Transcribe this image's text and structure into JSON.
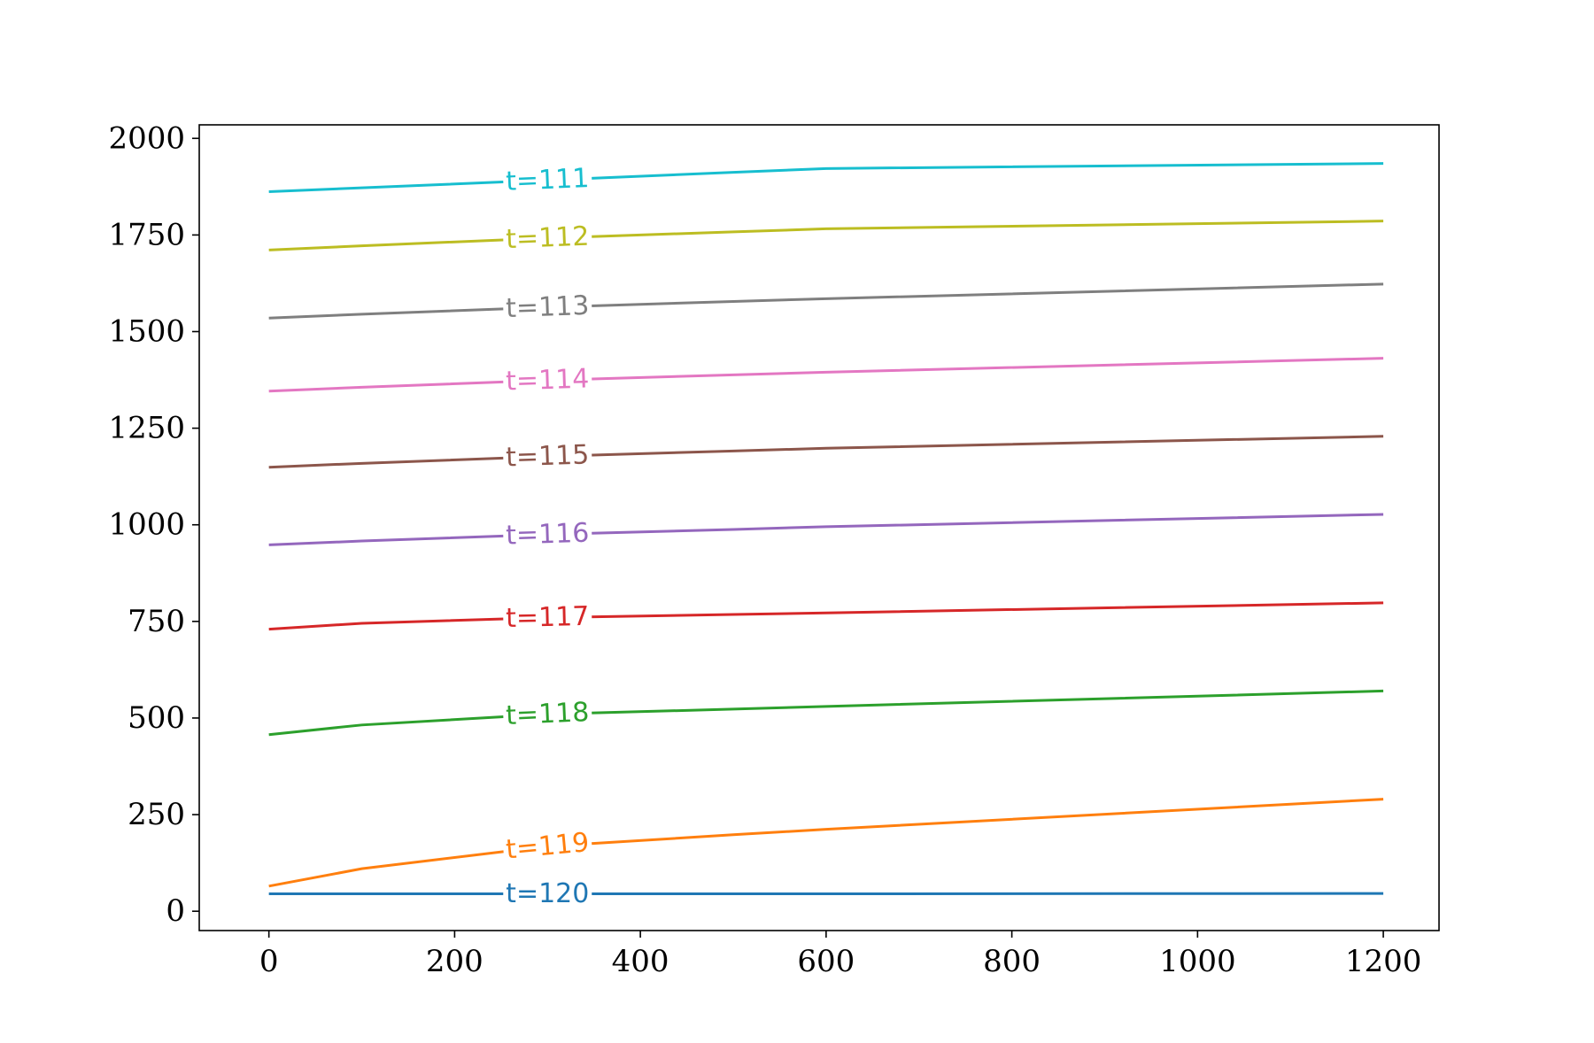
{
  "chart_data": {
    "type": "line",
    "title": "",
    "xlabel": "",
    "ylabel": "",
    "xlim": [
      -75,
      1260
    ],
    "ylim": [
      -50,
      2035
    ],
    "xticks": [
      0,
      200,
      400,
      600,
      800,
      1000,
      1200
    ],
    "yticks": [
      0,
      250,
      500,
      750,
      1000,
      1250,
      1500,
      1750,
      2000
    ],
    "grid": false,
    "legend": "none; inline labels on lines at x≈300",
    "x": [
      0,
      100,
      300,
      500,
      600,
      1200
    ],
    "series": [
      {
        "name": "t=111",
        "color": "#17becf",
        "values": [
          1862,
          1872,
          1892,
          1912,
          1922,
          1935
        ]
      },
      {
        "name": "t=112",
        "color": "#bcbd22",
        "values": [
          1711,
          1722,
          1742,
          1758,
          1766,
          1786
        ]
      },
      {
        "name": "t=113",
        "color": "#7f7f7f",
        "values": [
          1535,
          1545,
          1563,
          1578,
          1585,
          1623
        ]
      },
      {
        "name": "t=114",
        "color": "#e377c2",
        "values": [
          1346,
          1356,
          1374,
          1388,
          1395,
          1431
        ]
      },
      {
        "name": "t=115",
        "color": "#8c564b",
        "values": [
          1149,
          1159,
          1177,
          1191,
          1198,
          1229
        ]
      },
      {
        "name": "t=116",
        "color": "#9467bd",
        "values": [
          948,
          958,
          975,
          988,
          995,
          1027
        ]
      },
      {
        "name": "t=117",
        "color": "#d62728",
        "values": [
          730,
          745,
          760,
          768,
          772,
          798
        ]
      },
      {
        "name": "t=118",
        "color": "#2ca02c",
        "values": [
          457,
          482,
          510,
          523,
          530,
          570
        ]
      },
      {
        "name": "t=119",
        "color": "#ff7f0e",
        "values": [
          65,
          110,
          168,
          198,
          212,
          290
        ]
      },
      {
        "name": "t=120",
        "color": "#1f77b4",
        "values": [
          45,
          45,
          45,
          45,
          45,
          46
        ]
      }
    ]
  }
}
